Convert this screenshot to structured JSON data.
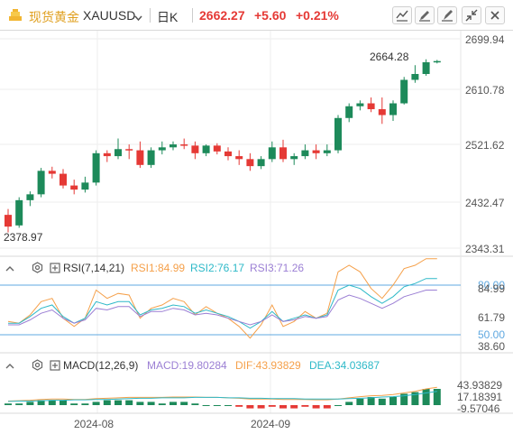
{
  "header": {
    "symbol_name": "现货黄金",
    "symbol_code": "XAUUSD",
    "period": "日K",
    "last_price": "2662.27",
    "change": "+5.60",
    "change_pct": "+0.21%",
    "up_color": "#e53935",
    "down_color": "#1d8a5a",
    "tools": [
      "draw-line-icon",
      "edit-icon",
      "brush-icon",
      "tune-icon",
      "collapse-icon",
      "close-icon"
    ]
  },
  "price_axis": {
    "labels": [
      "2699.94",
      "2610.78",
      "2521.62",
      "2432.47",
      "2343.31"
    ],
    "max_label": "2664.28",
    "min_label": "2378.97",
    "top_label_color": "#e53935"
  },
  "rsi": {
    "title": "RSI(7,14,21)",
    "rsi1": "RSI1:84.99",
    "rsi2": "RSI2:76.17",
    "rsi3": "RSI3:71.26",
    "axis": [
      "80.00",
      "84.99",
      "61.79",
      "50.00",
      "38.60"
    ],
    "colors": {
      "rsi1": "#f5a04a",
      "rsi2": "#2eb9c8",
      "rsi3": "#9b7fd4",
      "levels": "#5fa8e0"
    }
  },
  "macd": {
    "title": "MACD(12,26,9)",
    "macd": "MACD:19.80284",
    "dif": "DIF:43.93829",
    "dea": "DEA:34.03687",
    "axis": [
      "43.93829",
      "17.18391",
      "-9.57046"
    ],
    "colors": {
      "dif": "#f5a04a",
      "dea": "#2eb9c8"
    }
  },
  "x_axis": {
    "labels": [
      "2024-08",
      "2024-09"
    ]
  },
  "chart_data": {
    "type": "candlestick",
    "series": [
      {
        "o": 2400,
        "h": 2410,
        "l": 2370,
        "c": 2380
      },
      {
        "o": 2382,
        "h": 2430,
        "l": 2378,
        "c": 2425
      },
      {
        "o": 2425,
        "h": 2440,
        "l": 2415,
        "c": 2435
      },
      {
        "o": 2435,
        "h": 2480,
        "l": 2430,
        "c": 2475
      },
      {
        "o": 2475,
        "h": 2482,
        "l": 2462,
        "c": 2470
      },
      {
        "o": 2470,
        "h": 2478,
        "l": 2445,
        "c": 2450
      },
      {
        "o": 2450,
        "h": 2460,
        "l": 2435,
        "c": 2443
      },
      {
        "o": 2443,
        "h": 2465,
        "l": 2438,
        "c": 2455
      },
      {
        "o": 2455,
        "h": 2510,
        "l": 2450,
        "c": 2505
      },
      {
        "o": 2505,
        "h": 2510,
        "l": 2490,
        "c": 2500
      },
      {
        "o": 2500,
        "h": 2530,
        "l": 2495,
        "c": 2512
      },
      {
        "o": 2512,
        "h": 2520,
        "l": 2495,
        "c": 2510
      },
      {
        "o": 2510,
        "h": 2525,
        "l": 2480,
        "c": 2485
      },
      {
        "o": 2485,
        "h": 2515,
        "l": 2480,
        "c": 2510
      },
      {
        "o": 2510,
        "h": 2525,
        "l": 2503,
        "c": 2515
      },
      {
        "o": 2515,
        "h": 2525,
        "l": 2510,
        "c": 2520
      },
      {
        "o": 2520,
        "h": 2530,
        "l": 2512,
        "c": 2518
      },
      {
        "o": 2518,
        "h": 2525,
        "l": 2495,
        "c": 2505
      },
      {
        "o": 2505,
        "h": 2520,
        "l": 2500,
        "c": 2518
      },
      {
        "o": 2518,
        "h": 2522,
        "l": 2503,
        "c": 2508
      },
      {
        "o": 2508,
        "h": 2515,
        "l": 2493,
        "c": 2500
      },
      {
        "o": 2500,
        "h": 2510,
        "l": 2485,
        "c": 2495
      },
      {
        "o": 2495,
        "h": 2505,
        "l": 2475,
        "c": 2483
      },
      {
        "o": 2483,
        "h": 2500,
        "l": 2478,
        "c": 2495
      },
      {
        "o": 2495,
        "h": 2525,
        "l": 2490,
        "c": 2515
      },
      {
        "o": 2515,
        "h": 2528,
        "l": 2490,
        "c": 2495
      },
      {
        "o": 2495,
        "h": 2505,
        "l": 2485,
        "c": 2500
      },
      {
        "o": 2500,
        "h": 2520,
        "l": 2495,
        "c": 2510
      },
      {
        "o": 2510,
        "h": 2520,
        "l": 2495,
        "c": 2505
      },
      {
        "o": 2505,
        "h": 2520,
        "l": 2500,
        "c": 2510
      },
      {
        "o": 2510,
        "h": 2570,
        "l": 2505,
        "c": 2565
      },
      {
        "o": 2565,
        "h": 2590,
        "l": 2558,
        "c": 2585
      },
      {
        "o": 2585,
        "h": 2595,
        "l": 2578,
        "c": 2590
      },
      {
        "o": 2590,
        "h": 2600,
        "l": 2575,
        "c": 2580
      },
      {
        "o": 2580,
        "h": 2600,
        "l": 2555,
        "c": 2570
      },
      {
        "o": 2570,
        "h": 2595,
        "l": 2560,
        "c": 2590
      },
      {
        "o": 2590,
        "h": 2635,
        "l": 2588,
        "c": 2630
      },
      {
        "o": 2630,
        "h": 2655,
        "l": 2625,
        "c": 2640
      },
      {
        "o": 2640,
        "h": 2665,
        "l": 2637,
        "c": 2660
      },
      {
        "o": 2660,
        "h": 2664,
        "l": 2658,
        "c": 2662
      }
    ]
  }
}
